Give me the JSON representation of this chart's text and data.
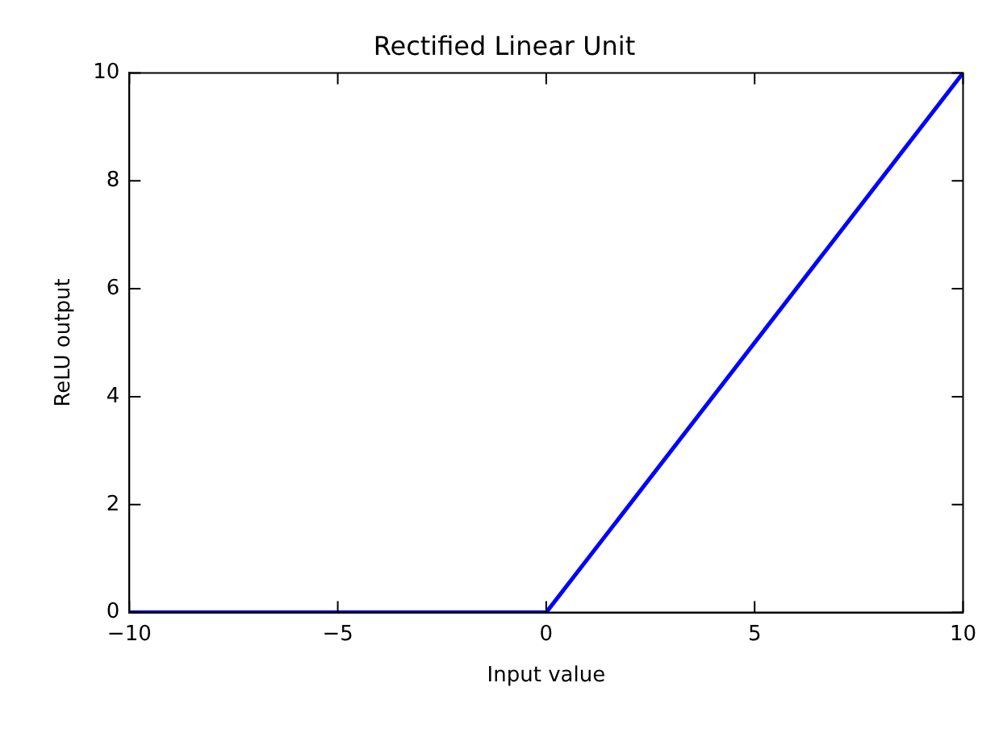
{
  "chart_data": {
    "type": "line",
    "title": "Rectified Linear Unit",
    "xlabel": "Input value",
    "ylabel": "ReLU output",
    "x": [
      -10,
      0,
      10
    ],
    "series": [
      {
        "color": "#0000ff",
        "values": [
          0,
          0,
          10
        ]
      }
    ],
    "xlim": [
      -10,
      10
    ],
    "xticks": [
      -10,
      -5,
      0,
      5,
      10
    ],
    "ylim": [
      0,
      10
    ],
    "yticks": [
      0,
      2,
      4,
      6,
      8,
      10
    ],
    "grid": false,
    "legend": false,
    "marker": "none",
    "line_style": "solid"
  }
}
